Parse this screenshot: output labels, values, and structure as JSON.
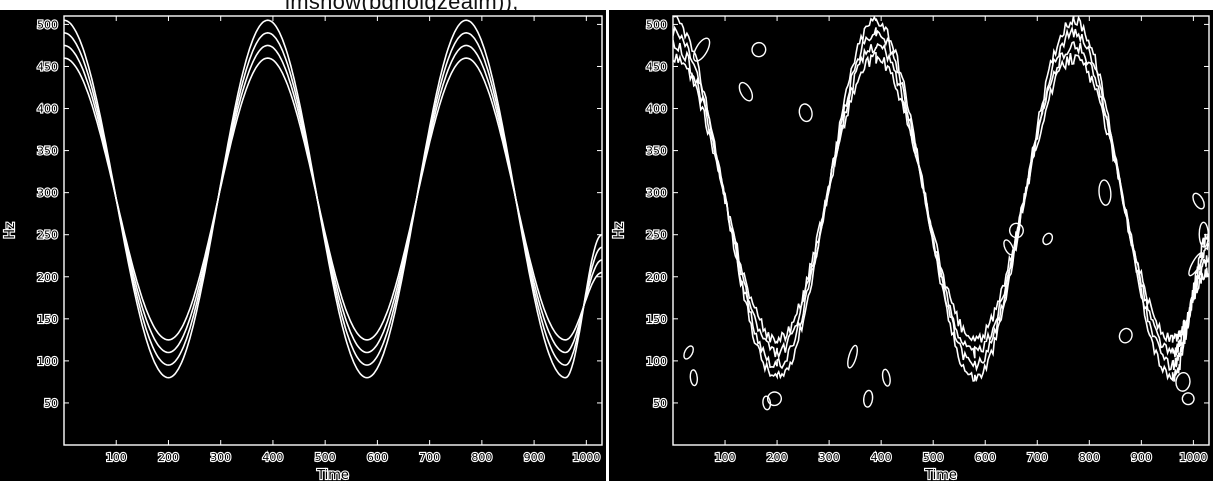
{
  "caption_text": "imshow(bgnolgzealm));",
  "chart_data": [
    {
      "type": "line",
      "panel": "left",
      "description_of_marks": "edge-detected contour bands of a sinusoidal frequency sweep (clean)",
      "xlabel": "Time",
      "ylabel": "Hz",
      "xlim": [
        0,
        1030
      ],
      "ylim": [
        0,
        510
      ],
      "x_ticks": [
        100,
        200,
        300,
        400,
        500,
        600,
        700,
        800,
        900,
        1000
      ],
      "y_ticks": [
        50,
        100,
        150,
        200,
        250,
        300,
        350,
        400,
        450,
        500
      ],
      "series": [
        {
          "values_description": "outer upper contour",
          "x": [
            0,
            200,
            390,
            580,
            770,
            960,
            1030
          ],
          "y": [
            505,
            80,
            505,
            80,
            505,
            80,
            250
          ]
        },
        {
          "x": [
            0,
            200,
            390,
            580,
            770,
            960,
            1030
          ],
          "y": [
            490,
            95,
            490,
            95,
            490,
            95,
            235
          ]
        },
        {
          "x": [
            0,
            200,
            390,
            580,
            770,
            960,
            1030
          ],
          "y": [
            475,
            110,
            475,
            110,
            475,
            110,
            220
          ]
        },
        {
          "x": [
            0,
            200,
            390,
            580,
            770,
            960,
            1030
          ],
          "y": [
            460,
            125,
            460,
            125,
            460,
            125,
            205
          ]
        }
      ],
      "grid": false,
      "background": "#000000",
      "line_color": "#ffffff"
    },
    {
      "type": "line",
      "panel": "right",
      "description_of_marks": "edge-detected contour bands of a sinusoidal frequency sweep (noisy)",
      "xlabel": "Time",
      "ylabel": "Hz",
      "xlim": [
        0,
        1030
      ],
      "ylim": [
        0,
        510
      ],
      "x_ticks": [
        100,
        200,
        300,
        400,
        500,
        600,
        700,
        800,
        900,
        1000
      ],
      "y_ticks": [
        50,
        100,
        150,
        200,
        250,
        300,
        350,
        400,
        450,
        500
      ],
      "series": [
        {
          "x": [
            0,
            200,
            390,
            580,
            770,
            960,
            1030
          ],
          "y": [
            505,
            80,
            505,
            80,
            505,
            80,
            250
          ]
        },
        {
          "x": [
            0,
            200,
            390,
            580,
            770,
            960,
            1030
          ],
          "y": [
            490,
            95,
            490,
            95,
            490,
            95,
            235
          ]
        },
        {
          "x": [
            0,
            200,
            390,
            580,
            770,
            960,
            1030
          ],
          "y": [
            475,
            110,
            475,
            110,
            475,
            110,
            220
          ]
        },
        {
          "x": [
            0,
            200,
            390,
            580,
            770,
            960,
            1030
          ],
          "y": [
            460,
            125,
            460,
            125,
            460,
            125,
            205
          ]
        }
      ],
      "noise_blobs": [
        {
          "x": 55,
          "y": 470
        },
        {
          "x": 165,
          "y": 470
        },
        {
          "x": 140,
          "y": 420
        },
        {
          "x": 255,
          "y": 395
        },
        {
          "x": 30,
          "y": 110
        },
        {
          "x": 40,
          "y": 80
        },
        {
          "x": 195,
          "y": 55
        },
        {
          "x": 180,
          "y": 50
        },
        {
          "x": 345,
          "y": 105
        },
        {
          "x": 375,
          "y": 55
        },
        {
          "x": 410,
          "y": 80
        },
        {
          "x": 660,
          "y": 255
        },
        {
          "x": 645,
          "y": 235
        },
        {
          "x": 720,
          "y": 245
        },
        {
          "x": 830,
          "y": 300
        },
        {
          "x": 870,
          "y": 130
        },
        {
          "x": 980,
          "y": 75
        },
        {
          "x": 990,
          "y": 55
        },
        {
          "x": 1010,
          "y": 290
        },
        {
          "x": 1020,
          "y": 250
        },
        {
          "x": 1005,
          "y": 215
        }
      ],
      "grid": false,
      "background": "#000000",
      "line_color": "#ffffff"
    }
  ]
}
